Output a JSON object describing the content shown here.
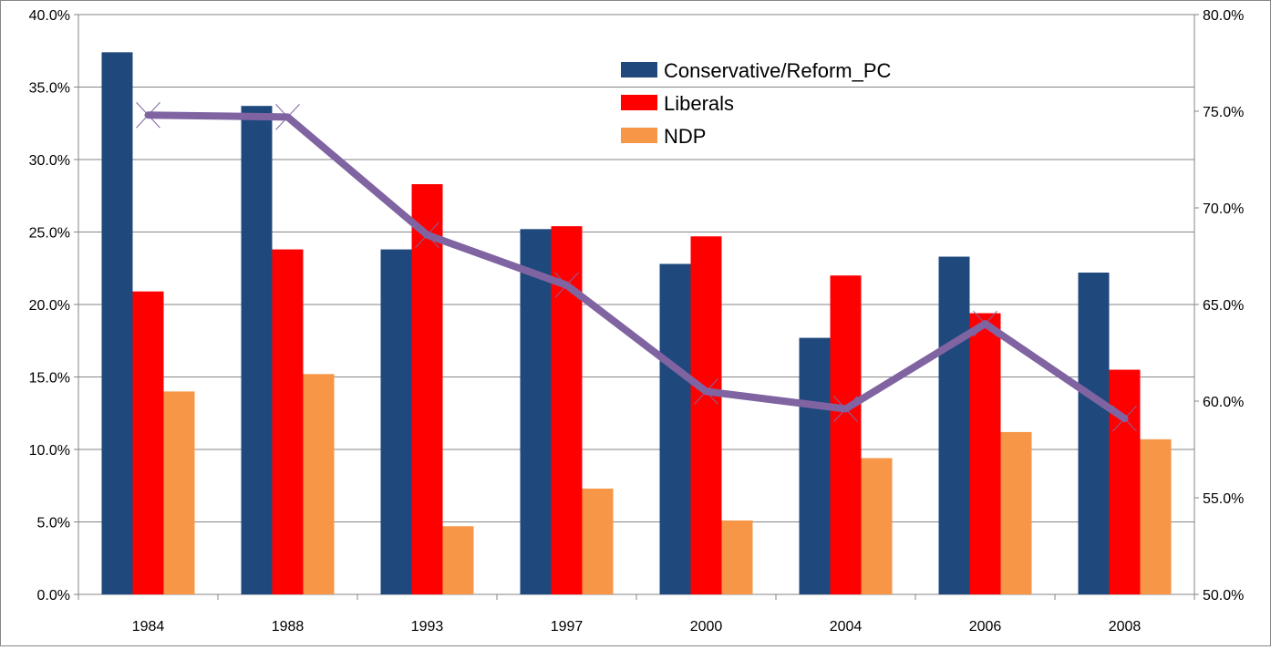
{
  "chart_data": {
    "type": "bar",
    "categories": [
      "1984",
      "1988",
      "1993",
      "1997",
      "2000",
      "2004",
      "2006",
      "2008"
    ],
    "series": [
      {
        "name": "Conservative/Reform_PC",
        "type": "bar",
        "axis": "left",
        "color": "#1F497D",
        "values": [
          37.4,
          33.7,
          23.8,
          25.2,
          22.8,
          17.7,
          23.3,
          22.2
        ]
      },
      {
        "name": "Liberals",
        "type": "bar",
        "axis": "left",
        "color": "#FF0000",
        "values": [
          20.9,
          23.8,
          28.3,
          25.4,
          24.7,
          22.0,
          19.4,
          15.5
        ]
      },
      {
        "name": "NDP",
        "type": "bar",
        "axis": "left",
        "color": "#F79646",
        "values": [
          14.0,
          15.2,
          4.7,
          7.3,
          5.1,
          9.4,
          11.2,
          10.7
        ]
      },
      {
        "name": "",
        "type": "line",
        "axis": "right",
        "color": "#8064A2",
        "values": [
          74.8,
          74.7,
          68.6,
          66.0,
          60.5,
          59.6,
          64.0,
          59.1
        ]
      }
    ],
    "y_left": {
      "min": 0,
      "max": 40,
      "step": 5,
      "ticks": [
        "0.0%",
        "5.0%",
        "10.0%",
        "15.0%",
        "20.0%",
        "25.0%",
        "30.0%",
        "35.0%",
        "40.0%"
      ]
    },
    "y_right": {
      "min": 50,
      "max": 80,
      "step": 5,
      "ticks": [
        "50.0%",
        "55.0%",
        "60.0%",
        "65.0%",
        "70.0%",
        "75.0%",
        "80.0%"
      ]
    },
    "grid": true,
    "legend": "top-center",
    "title": "",
    "xlabel": "",
    "ylabel": ""
  }
}
